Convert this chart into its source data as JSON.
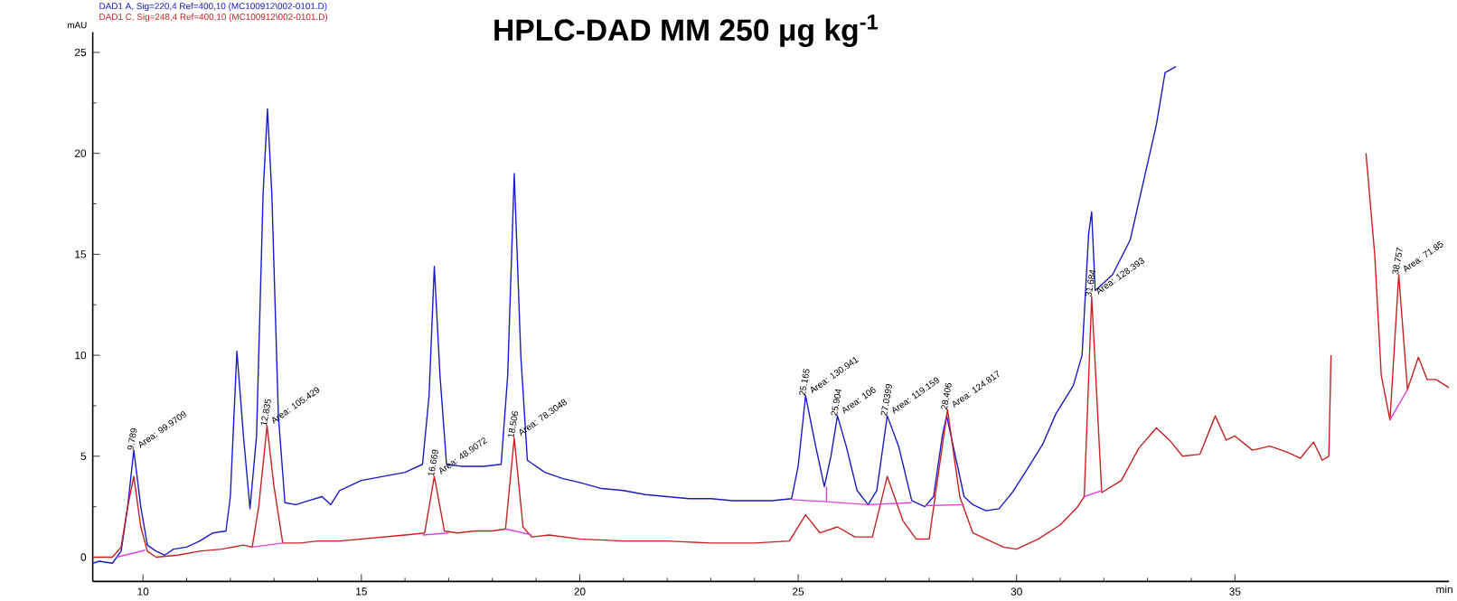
{
  "chart_data": {
    "type": "line",
    "title": "HPLC-DAD    MM 250 μg kg$^{-1}$",
    "xlabel": "min",
    "ylabel": "mAU",
    "legend": "top left",
    "xlim": [
      8.85,
      39.9
    ],
    "ylim": [
      -1.2,
      26
    ],
    "xticks": [
      10,
      15,
      20,
      25,
      30,
      35
    ],
    "yticks": [
      0,
      5,
      10,
      15,
      20,
      25
    ],
    "series": [
      {
        "name": "DAD1 A, Sig=220,4 Ref=400,10 (MC100912\\002-0101.D)",
        "color": "#1a1ac8",
        "x": [
          8.85,
          9.0,
          9.3,
          9.5,
          9.65,
          9.79,
          9.95,
          10.1,
          10.3,
          10.5,
          10.7,
          11.0,
          11.3,
          11.6,
          11.9,
          12.0,
          12.15,
          12.3,
          12.45,
          12.6,
          12.75,
          12.85,
          12.95,
          13.1,
          13.25,
          13.5,
          13.8,
          14.1,
          14.3,
          14.5,
          15.0,
          15.5,
          16.0,
          16.4,
          16.55,
          16.67,
          16.8,
          16.95,
          17.3,
          17.8,
          18.2,
          18.35,
          18.5,
          18.65,
          18.8,
          19.2,
          19.6,
          20.0,
          20.5,
          21.0,
          21.5,
          22.0,
          22.5,
          23.0,
          23.5,
          24.0,
          24.4,
          24.85,
          25.0,
          25.17,
          25.4,
          25.6,
          25.75,
          25.9,
          26.1,
          26.35,
          26.6,
          26.8,
          27.04,
          27.3,
          27.6,
          27.9,
          28.1,
          28.3,
          28.4,
          28.55,
          28.8,
          29.0,
          29.3,
          29.6,
          29.9,
          30.2,
          30.6,
          30.9,
          31.3,
          31.5,
          31.65,
          31.72,
          31.8,
          31.95,
          32.2,
          32.6,
          33.0,
          33.2,
          33.4,
          33.65
        ],
        "values": [
          -0.3,
          -0.2,
          -0.3,
          0.3,
          2.5,
          5.3,
          2.5,
          0.6,
          0.3,
          0.1,
          0.4,
          0.5,
          0.8,
          1.2,
          1.3,
          3,
          10.2,
          6,
          2.4,
          6,
          18,
          22.2,
          18,
          7,
          2.7,
          2.6,
          2.8,
          3.0,
          2.6,
          3.3,
          3.8,
          4.0,
          4.2,
          4.6,
          8,
          14.4,
          9,
          4.6,
          4.5,
          4.5,
          4.6,
          9,
          19.0,
          10,
          4.8,
          4.2,
          3.9,
          3.7,
          3.4,
          3.3,
          3.1,
          3.0,
          2.9,
          2.9,
          2.8,
          2.8,
          2.8,
          2.9,
          4.5,
          8.0,
          5.5,
          3.5,
          5,
          7.0,
          5.5,
          3.3,
          2.6,
          3.3,
          7.0,
          5.5,
          2.8,
          2.5,
          3.0,
          6,
          7.0,
          5.5,
          3.0,
          2.6,
          2.3,
          2.4,
          3.2,
          4.2,
          5.6,
          7.1,
          8.5,
          10.0,
          16,
          17.1,
          13.2,
          13.5,
          14,
          15.7,
          19.5,
          21.4,
          24,
          24.3
        ]
      },
      {
        "name": "DAD1 C, Sig=248,4 Ref=400,10 (MC100912\\002-0101.D)",
        "color": "#c82020",
        "x": [
          8.85,
          9.3,
          9.5,
          9.65,
          9.79,
          9.95,
          10.1,
          10.3,
          10.8,
          11.3,
          11.8,
          12.3,
          12.5,
          12.65,
          12.84,
          13.0,
          13.2,
          13.6,
          14.0,
          14.5,
          15.0,
          15.5,
          16.0,
          16.45,
          16.67,
          16.9,
          17.2,
          17.6,
          18.0,
          18.3,
          18.5,
          18.7,
          18.9,
          19.3,
          20.0,
          21.0,
          22.0,
          23.0,
          24.0,
          24.8,
          25.17,
          25.5,
          25.9,
          26.3,
          26.7,
          27.04,
          27.4,
          27.7,
          28.0,
          28.2,
          28.42,
          28.7,
          29.0,
          29.4,
          29.7,
          30.0,
          30.5,
          31.0,
          31.4,
          31.55,
          31.72,
          31.95,
          32.4,
          32.8,
          33.2,
          33.5,
          33.8,
          34.2,
          34.55,
          34.8,
          35.0,
          35.4,
          35.8,
          36.2,
          36.5,
          36.8,
          37.0,
          37.15,
          37.2,
          37.55,
          38.0,
          38.2,
          38.35,
          38.55,
          38.75,
          38.95,
          39.2,
          39.4,
          39.6,
          39.9
        ],
        "values": [
          0.0,
          0.0,
          0.5,
          2.5,
          4.0,
          1.5,
          0.3,
          0.0,
          0.1,
          0.3,
          0.4,
          0.6,
          0.5,
          2.5,
          6.5,
          3.5,
          0.7,
          0.7,
          0.8,
          0.8,
          0.9,
          1.0,
          1.1,
          1.2,
          4.0,
          1.3,
          1.2,
          1.3,
          1.3,
          1.4,
          5.9,
          1.5,
          1.0,
          1.1,
          0.9,
          0.8,
          0.8,
          0.7,
          0.7,
          0.8,
          2.1,
          1.2,
          1.5,
          1.0,
          1.0,
          4.0,
          1.8,
          0.9,
          0.9,
          4,
          7.3,
          3.0,
          1.2,
          0.8,
          0.5,
          0.4,
          0.9,
          1.6,
          2.5,
          3.0,
          12.9,
          3.2,
          3.8,
          5.4,
          6.4,
          5.8,
          5.0,
          5.1,
          7.0,
          5.8,
          6.0,
          5.3,
          5.5,
          5.2,
          4.9,
          5.7,
          4.8,
          5.0,
          10,
          null,
          20,
          15,
          9,
          6.8,
          14.0,
          8.3,
          9.9,
          8.8,
          8.8,
          8.4
        ]
      },
      {
        "color": "#e040e0",
        "x": [
          9.4,
          10.05,
          null,
          12.5,
          13.2,
          null,
          16.4,
          17.0,
          null,
          18.3,
          18.9,
          null,
          24.85,
          25.65,
          25.65,
          null,
          25.65,
          26.6,
          27.6,
          null,
          27.9,
          28.8,
          null,
          31.55,
          31.95,
          null,
          38.55,
          38.95
        ],
        "values": [
          0.0,
          0.35,
          null,
          0.5,
          0.7,
          null,
          1.1,
          1.2,
          null,
          1.4,
          1.1,
          null,
          2.85,
          2.75,
          3.5,
          null,
          2.75,
          2.6,
          2.7,
          null,
          2.55,
          2.6,
          null,
          3.0,
          3.3,
          null,
          6.8,
          8.3
        ]
      }
    ],
    "annotations": [
      {
        "text": "9.789",
        "x": 9.79,
        "y": 5.3
      },
      {
        "text": "Area: 99.9709",
        "x": 9.79,
        "y": 5.3
      },
      {
        "text": "12.835",
        "x": 12.84,
        "y": 6.5
      },
      {
        "text": "Area: 105.429",
        "x": 12.84,
        "y": 6.5
      },
      {
        "text": "16.669",
        "x": 16.67,
        "y": 4.0
      },
      {
        "text": "Area: 48.9072",
        "x": 16.67,
        "y": 4.0
      },
      {
        "text": "18.506",
        "x": 18.5,
        "y": 5.9
      },
      {
        "text": "Area: 78.3048",
        "x": 18.5,
        "y": 5.9
      },
      {
        "text": "25.165",
        "x": 25.17,
        "y": 8.0
      },
      {
        "text": "Area: 130.941",
        "x": 25.17,
        "y": 8.0
      },
      {
        "text": "25.904",
        "x": 25.9,
        "y": 7.0
      },
      {
        "text": "Area: 106",
        "x": 25.9,
        "y": 7.0
      },
      {
        "text": "27.0399",
        "x": 27.04,
        "y": 7.0
      },
      {
        "text": "Area: 119.159",
        "x": 27.04,
        "y": 7.0
      },
      {
        "text": "28.406",
        "x": 28.42,
        "y": 7.3
      },
      {
        "text": "Area: 124.817",
        "x": 28.42,
        "y": 7.3
      },
      {
        "text": "31.684",
        "x": 31.72,
        "y": 12.9
      },
      {
        "text": "Area: 128.393",
        "x": 31.72,
        "y": 12.9
      },
      {
        "text": "38.757",
        "x": 38.75,
        "y": 14.0
      },
      {
        "text": "Area: 71.85",
        "x": 38.75,
        "y": 14.0
      }
    ]
  }
}
